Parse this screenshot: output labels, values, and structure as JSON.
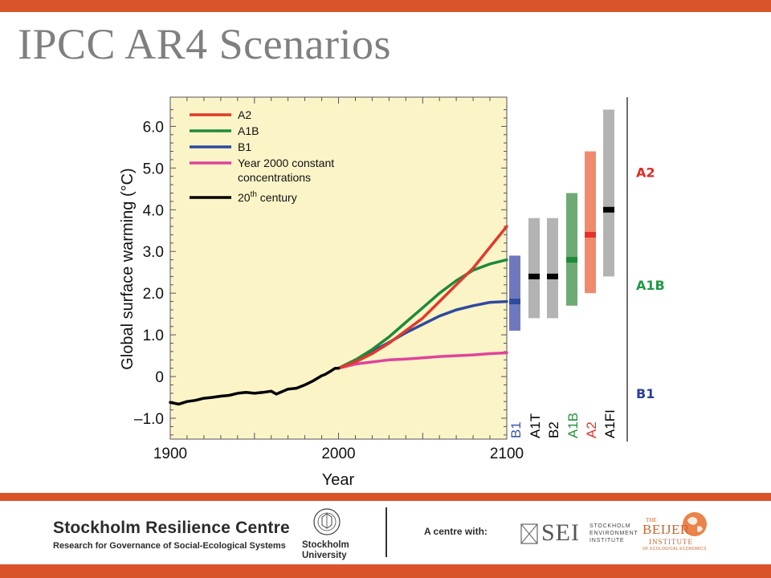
{
  "slide": {
    "title": "IPCC AR4 Scenarios",
    "accent_color": "#d9542a"
  },
  "chart_data": {
    "type": "line",
    "ylabel": "Global surface warming (°C)",
    "xlabel": "Year",
    "xlim": [
      1900,
      2100
    ],
    "ylim": [
      -1.5,
      6.7
    ],
    "x_ticks": [
      "1900",
      "2000",
      "2100"
    ],
    "y_ticks": [
      {
        "value": 6.0,
        "label": "6.0"
      },
      {
        "value": 5.0,
        "label": "5.0"
      },
      {
        "value": 4.0,
        "label": "4.0"
      },
      {
        "value": 3.0,
        "label": "3.0"
      },
      {
        "value": 2.0,
        "label": "2.0"
      },
      {
        "value": 1.0,
        "label": "1.0"
      },
      {
        "value": 0,
        "label": "0"
      },
      {
        "value": -1.0,
        "label": "–1.0"
      }
    ],
    "legend_placement": "top-left",
    "plot_background": "#fbf4c7",
    "legend": [
      {
        "series": "A2",
        "label": "A2",
        "lines": [
          "A2"
        ]
      },
      {
        "series": "A1B",
        "label": "A1B",
        "lines": [
          "A1B"
        ]
      },
      {
        "series": "B1",
        "label": "B1",
        "lines": [
          "B1"
        ]
      },
      {
        "series": "const",
        "label": "Year 2000 constant concentrations",
        "lines": [
          "Year 2000 constant",
          "concentrations"
        ]
      },
      {
        "series": "20c",
        "label": "20th century",
        "base": "20",
        "sup": "th",
        "rest": " century"
      }
    ],
    "series": [
      {
        "name": "20th century",
        "id": "20c",
        "color": "#000000",
        "x": [
          1900,
          1905,
          1910,
          1915,
          1920,
          1925,
          1930,
          1935,
          1940,
          1945,
          1950,
          1955,
          1960,
          1963,
          1966,
          1970,
          1975,
          1980,
          1985,
          1990,
          1992,
          1995,
          1998,
          2000
        ],
        "y": [
          -0.62,
          -0.66,
          -0.6,
          -0.57,
          -0.52,
          -0.5,
          -0.47,
          -0.45,
          -0.4,
          -0.38,
          -0.4,
          -0.38,
          -0.35,
          -0.42,
          -0.37,
          -0.3,
          -0.28,
          -0.2,
          -0.1,
          0.02,
          0.05,
          0.12,
          0.2,
          0.2
        ]
      },
      {
        "name": "A2",
        "id": "A2",
        "color": "#e03a2c",
        "x": [
          2000,
          2010,
          2020,
          2030,
          2040,
          2050,
          2060,
          2070,
          2080,
          2090,
          2100
        ],
        "y": [
          0.2,
          0.35,
          0.55,
          0.8,
          1.1,
          1.4,
          1.8,
          2.2,
          2.6,
          3.1,
          3.6
        ]
      },
      {
        "name": "A1B",
        "id": "A1B",
        "color": "#1f8a3a",
        "x": [
          2000,
          2010,
          2020,
          2030,
          2040,
          2050,
          2060,
          2070,
          2080,
          2090,
          2100
        ],
        "y": [
          0.2,
          0.4,
          0.65,
          0.95,
          1.3,
          1.65,
          2.0,
          2.3,
          2.55,
          2.7,
          2.8
        ]
      },
      {
        "name": "B1",
        "id": "B1",
        "color": "#2e4aa0",
        "x": [
          2000,
          2010,
          2020,
          2030,
          2040,
          2050,
          2060,
          2070,
          2080,
          2090,
          2100
        ],
        "y": [
          0.2,
          0.4,
          0.6,
          0.82,
          1.05,
          1.25,
          1.45,
          1.6,
          1.7,
          1.78,
          1.8
        ]
      },
      {
        "name": "Year 2000 constant concentrations",
        "id": "const",
        "color": "#e0439c",
        "x": [
          2000,
          2010,
          2020,
          2030,
          2040,
          2050,
          2060,
          2070,
          2080,
          2090,
          2100
        ],
        "y": [
          0.2,
          0.3,
          0.35,
          0.4,
          0.42,
          0.45,
          0.48,
          0.5,
          0.52,
          0.55,
          0.57
        ]
      }
    ],
    "ranges": [
      {
        "scenario": "B1",
        "low": 1.1,
        "best": 1.8,
        "high": 2.9,
        "color": "#6e79bd",
        "mark": "#2d4ba0",
        "label_color": "#3d52b0"
      },
      {
        "scenario": "A1T",
        "low": 1.4,
        "best": 2.4,
        "high": 3.8,
        "color": "#b3b3b3",
        "mark": "#000000",
        "label_color": "#000000"
      },
      {
        "scenario": "B2",
        "low": 1.4,
        "best": 2.4,
        "high": 3.8,
        "color": "#b3b3b3",
        "mark": "#000000",
        "label_color": "#000000"
      },
      {
        "scenario": "A1B",
        "low": 1.7,
        "best": 2.8,
        "high": 4.4,
        "color": "#6fa973",
        "mark": "#1f8a3a",
        "label_color": "#2a8f40"
      },
      {
        "scenario": "A2",
        "low": 2.0,
        "best": 3.4,
        "high": 5.4,
        "color": "#f08a6c",
        "mark": "#e5302a",
        "label_color": "#e5302a"
      },
      {
        "scenario": "A1FI",
        "low": 2.4,
        "best": 4.0,
        "high": 6.4,
        "color": "#b3b3b3",
        "mark": "#000000",
        "label_color": "#000000"
      }
    ],
    "side_labels": [
      {
        "text": "A2",
        "color": "#e02a24",
        "y": 4.9
      },
      {
        "text": "A1B",
        "color": "#1f9a45",
        "y": 2.2
      },
      {
        "text": "B1",
        "color": "#2a3d9a",
        "y": -0.4
      }
    ]
  },
  "footer": {
    "src_name": "Stockholm Resilience Centre",
    "src_sub": "Research for Governance of Social-Ecological Systems",
    "su_name_line1": "Stockholm",
    "su_name_line2": "University",
    "centre_with": "A centre with:",
    "sei_letters": "SEI",
    "sei_line1": "STOCKHOLM",
    "sei_line2": "ENVIRONMENT",
    "sei_line3": "INSTITUTE",
    "beijer_the": "THE",
    "beijer_name": "BEIJER",
    "beijer_institute": "INSTITUTE",
    "beijer_eco": "OF ECOLOGICAL ECONOMICS"
  }
}
